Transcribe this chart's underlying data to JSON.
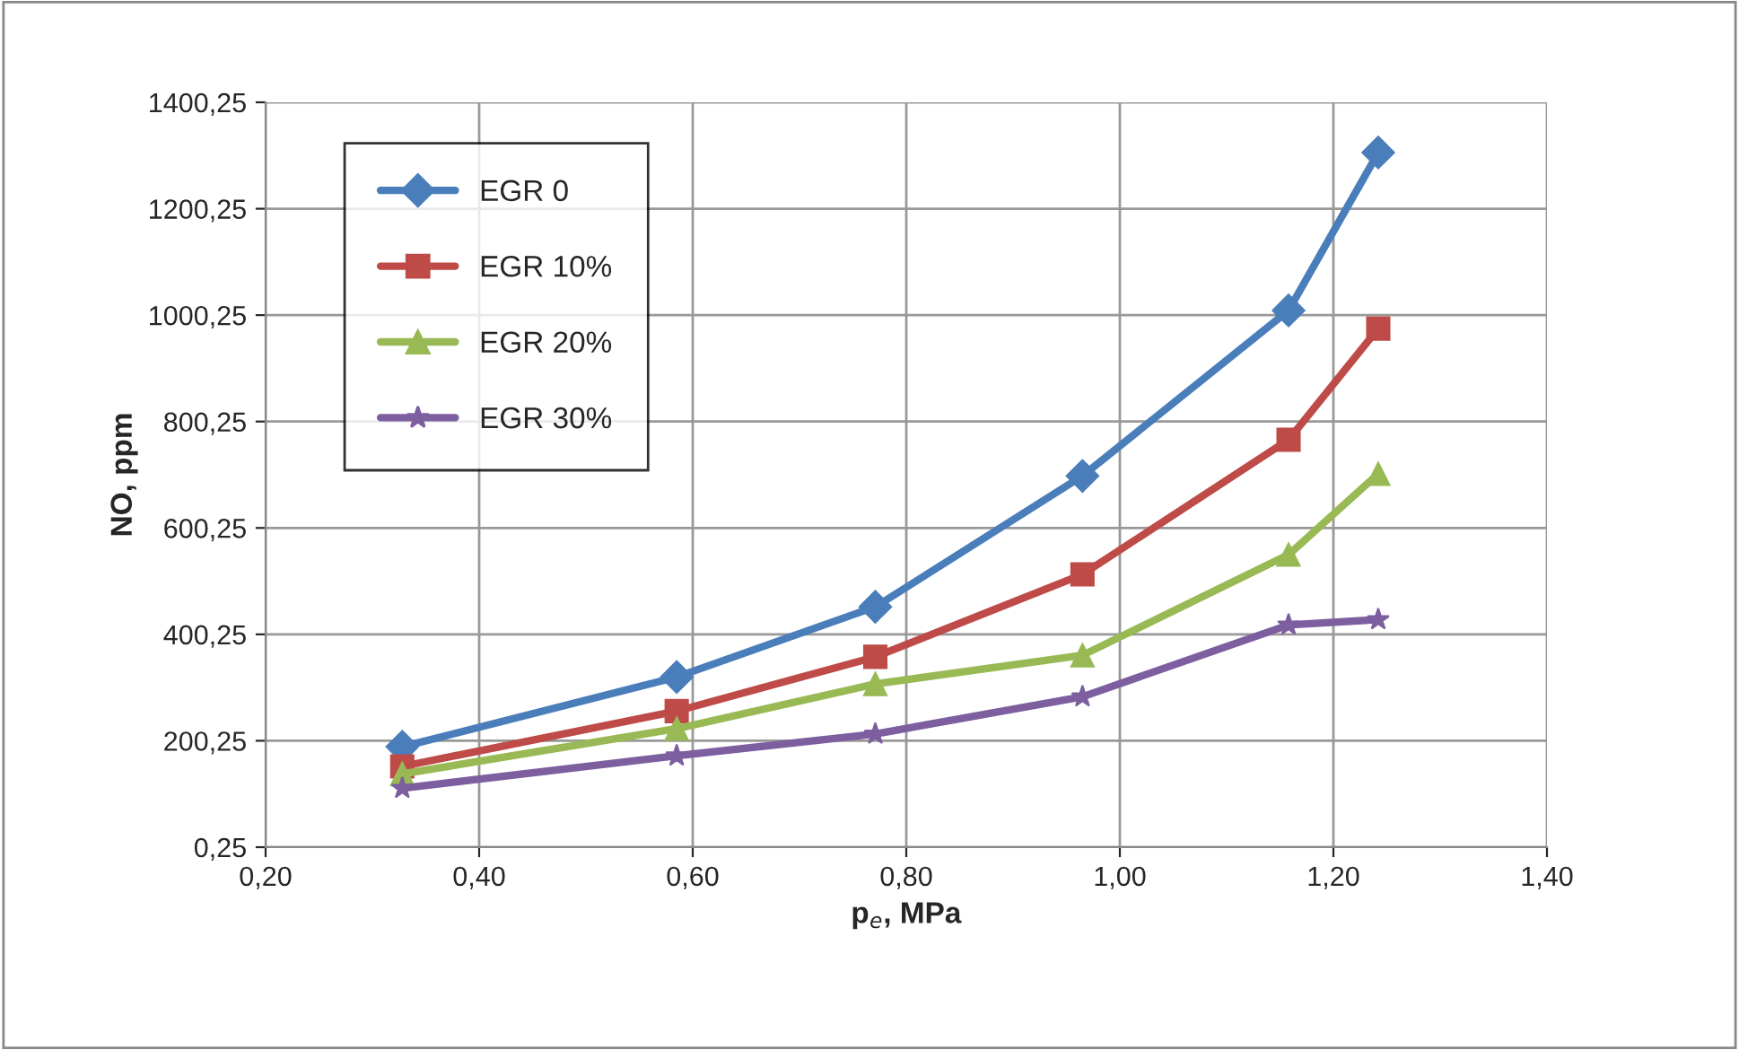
{
  "chart_data": {
    "type": "line",
    "xlabel": "p$_{e}$, MPa",
    "ylabel": "NO, ppm",
    "x": [
      0.328,
      0.585,
      0.771,
      0.965,
      1.158,
      1.242
    ],
    "series": [
      {
        "name": "EGR 0",
        "color": "#4a7ebb",
        "marker": "diamond",
        "values": [
          189,
          320,
          452,
          698,
          1009,
          1306
        ]
      },
      {
        "name": "EGR 10%",
        "color": "#be4b48",
        "marker": "square",
        "values": [
          152,
          256,
          358,
          513,
          766,
          975
        ]
      },
      {
        "name": "EGR 20%",
        "color": "#98b954",
        "marker": "triangle",
        "values": [
          138,
          223,
          307,
          361,
          550,
          702
        ]
      },
      {
        "name": "EGR 30%",
        "color": "#7d5fa0",
        "marker": "star",
        "values": [
          111,
          172,
          213,
          283,
          418,
          428
        ]
      }
    ],
    "xlim": [
      0.2,
      1.4
    ],
    "xticks": [
      {
        "value": 0.2,
        "label": "0,20"
      },
      {
        "value": 0.4,
        "label": "0,40"
      },
      {
        "value": 0.6,
        "label": "0,60"
      },
      {
        "value": 0.8,
        "label": "0,80"
      },
      {
        "value": 1.0,
        "label": "1,00"
      },
      {
        "value": 1.2,
        "label": "1,20"
      },
      {
        "value": 1.4,
        "label": "1,40"
      }
    ],
    "ylim": [
      0.25,
      1400.25
    ],
    "yticks": [
      {
        "value": 0.25,
        "label": "0,25"
      },
      {
        "value": 200.25,
        "label": "200,25"
      },
      {
        "value": 400.25,
        "label": "400,25"
      },
      {
        "value": 600.25,
        "label": "600,25"
      },
      {
        "value": 800.25,
        "label": "800,25"
      },
      {
        "value": 1000.25,
        "label": "1000,25"
      },
      {
        "value": 1200.25,
        "label": "1200,25"
      },
      {
        "value": 1400.25,
        "label": "1400,25"
      }
    ],
    "grid": true,
    "legend": "top left",
    "line_style": "solid"
  }
}
